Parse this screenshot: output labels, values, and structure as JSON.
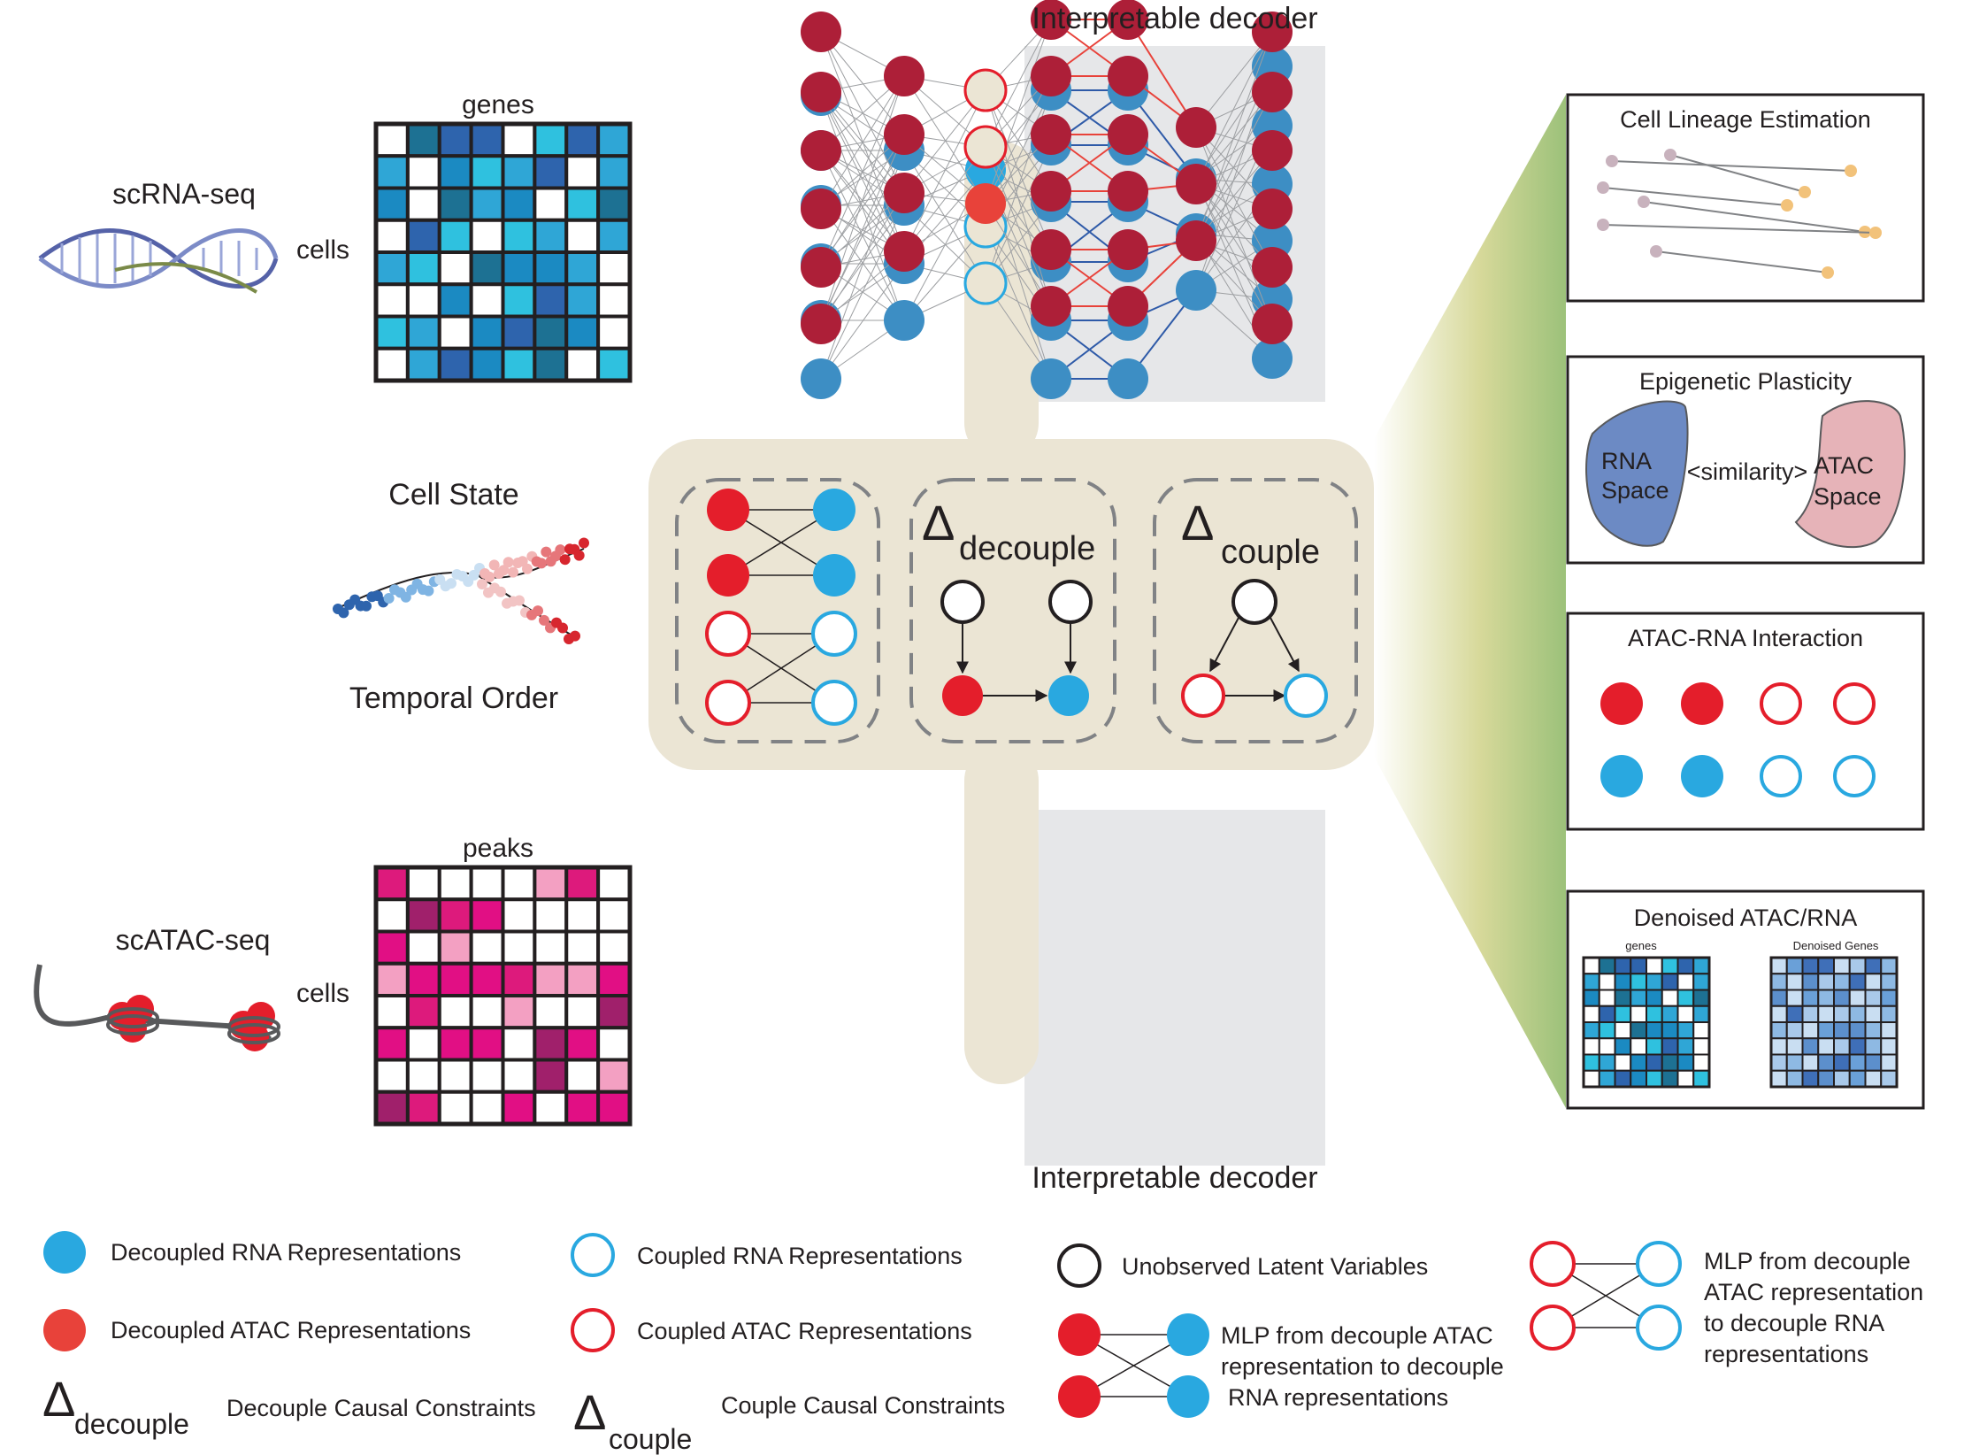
{
  "top_decoder_title": "Interpretable decoder",
  "bottom_decoder_title": "Interpretable decoder",
  "left": {
    "scrna_label": "scRNA-seq",
    "genes_label": "genes",
    "cells_label_rna": "cells",
    "cell_state_label": "Cell State",
    "temporal_order_label": "Temporal Order",
    "scatac_label": "scATAC-seq",
    "peaks_label": "peaks",
    "cells_label_atac": "cells"
  },
  "causal": {
    "delta_symbol": "Δ",
    "decouple_sub": "decouple",
    "couple_sub": "couple"
  },
  "right": {
    "lineage_title": "Cell Lineage Estimation",
    "plasticity_title": "Epigenetic Plasticity",
    "rna_space_line1": "RNA",
    "rna_space_line2": "Space",
    "similarity_label": "<similarity>",
    "atac_space_line1": "ATAC",
    "atac_space_line2": "Space",
    "interaction_title": "ATAC-RNA Interaction",
    "denoised_title": "Denoised ATAC/RNA",
    "mini_genes_label": "genes",
    "mini_denoised_label": "Denoised Genes"
  },
  "legend": {
    "decoupled_rna": "Decoupled RNA Representations",
    "decoupled_atac": "Decoupled ATAC Representations",
    "coupled_rna": "Coupled RNA Representations",
    "coupled_atac": "Coupled ATAC Representations",
    "unobserved": "Unobserved Latent Variables",
    "mlp_atac_to_rna_1": "MLP from decouple ATAC",
    "mlp_atac_to_rna_2": "representation to decouple",
    "mlp_atac_to_rna_3": "RNA representations",
    "mlp_right_1": "MLP from decouple",
    "mlp_right_2": "ATAC representation",
    "mlp_right_3": "to decouple RNA",
    "mlp_right_4": "representations",
    "delta_decouple_desc": "Decouple Causal Constraints",
    "delta_couple_desc": "Couple Causal Constraints"
  },
  "colors": {
    "rna_blue": "#29a8e0",
    "network_blue": "#3d8ec4",
    "atac_red": "#e41e2b",
    "network_red": "#ad1f38",
    "panel_beige": "#ebe5d4",
    "decoder_gray": "#e6e7e9"
  },
  "matrices": {
    "genes": [
      [
        0,
        5,
        3,
        3,
        0,
        4,
        3,
        1
      ],
      [
        1,
        0,
        2,
        4,
        1,
        3,
        0,
        1
      ],
      [
        2,
        0,
        5,
        1,
        2,
        0,
        4,
        5
      ],
      [
        0,
        3,
        4,
        0,
        4,
        1,
        0,
        1
      ],
      [
        1,
        4,
        0,
        5,
        2,
        2,
        1,
        0
      ],
      [
        0,
        0,
        2,
        0,
        4,
        3,
        1,
        0
      ],
      [
        4,
        1,
        0,
        2,
        3,
        5,
        2,
        0
      ],
      [
        0,
        1,
        3,
        2,
        4,
        5,
        0,
        4
      ]
    ],
    "peaks": [
      [
        4,
        0,
        0,
        0,
        0,
        1,
        4,
        0
      ],
      [
        0,
        3,
        4,
        2,
        0,
        0,
        0,
        0
      ],
      [
        2,
        0,
        1,
        0,
        0,
        0,
        0,
        0
      ],
      [
        1,
        2,
        2,
        2,
        4,
        1,
        1,
        2
      ],
      [
        0,
        4,
        0,
        0,
        1,
        0,
        0,
        3
      ],
      [
        2,
        0,
        2,
        2,
        0,
        3,
        2,
        0
      ],
      [
        0,
        0,
        0,
        0,
        0,
        3,
        0,
        1
      ],
      [
        3,
        4,
        0,
        0,
        2,
        0,
        2,
        2
      ]
    ]
  }
}
